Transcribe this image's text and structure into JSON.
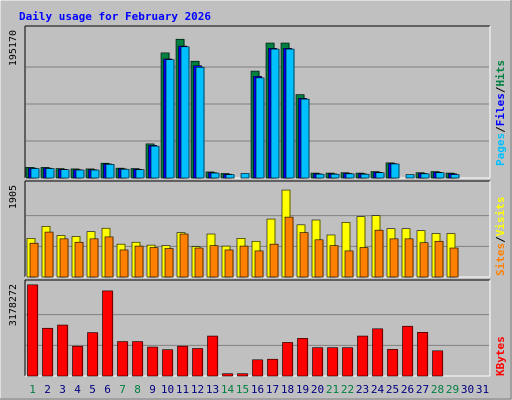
{
  "chart_data": {
    "type": "bar",
    "title": "Daily usage for February 2026",
    "categories": [
      "1",
      "2",
      "3",
      "4",
      "5",
      "6",
      "7",
      "8",
      "9",
      "10",
      "11",
      "12",
      "13",
      "14",
      "15",
      "16",
      "17",
      "18",
      "19",
      "20",
      "21",
      "22",
      "23",
      "24",
      "25",
      "26",
      "27",
      "28",
      "29",
      "30",
      "31"
    ],
    "weekend_days": [
      "1",
      "7",
      "8",
      "14",
      "15",
      "21",
      "22",
      "28",
      "29"
    ],
    "panels": [
      {
        "name": "hits-files-pages",
        "ymax_label": "195170",
        "ymax": 195170,
        "series": [
          {
            "name": "Hits",
            "color": "#008040",
            "values": [
              14000,
              14000,
              12500,
              12000,
              12000,
              19500,
              13000,
              12500,
              45000,
              165000,
              183000,
              154000,
              8000,
              6000,
              0,
              141000,
              178000,
              178000,
              110000,
              6500,
              6500,
              7000,
              6500,
              8500,
              20000,
              0,
              7000,
              8500,
              6500,
              null,
              null
            ]
          },
          {
            "name": "Files",
            "color": "#0000ff",
            "values": [
              13000,
              13000,
              11500,
              11000,
              11000,
              18500,
              12000,
              11500,
              43000,
              157000,
              174000,
              148000,
              7000,
              5000,
              0,
              134000,
              171000,
              171000,
              105000,
              5500,
              5500,
              6000,
              5500,
              7500,
              19000,
              0,
              6000,
              7500,
              5500,
              null,
              null
            ]
          },
          {
            "name": "Pages",
            "color": "#00c0ff",
            "values": [
              12500,
              12500,
              11000,
              10500,
              10500,
              18000,
              11500,
              11000,
              42000,
              156000,
              173000,
              146000,
              6500,
              4500,
              6000,
              132000,
              170000,
              170000,
              104000,
              5000,
              5000,
              5500,
              5000,
              7000,
              18500,
              4500,
              5500,
              7000,
              4500,
              null,
              null
            ]
          }
        ]
      },
      {
        "name": "visits-sites",
        "ymax_label": "1905",
        "ymax": 1905,
        "series": [
          {
            "name": "Visits",
            "color": "#ffff00",
            "values": [
              800,
              1050,
              860,
              840,
              940,
              1010,
              680,
              720,
              660,
              650,
              920,
              630,
              890,
              640,
              800,
              740,
              1200,
              1800,
              1080,
              1180,
              870,
              1130,
              1250,
              1270,
              1000,
              1000,
              960,
              900,
              900,
              null,
              null
            ]
          },
          {
            "name": "Sites",
            "color": "#ff8000",
            "values": [
              700,
              930,
              790,
              720,
              790,
              830,
              560,
              640,
              610,
              590,
              890,
              600,
              650,
              560,
              640,
              540,
              680,
              1240,
              920,
              770,
              650,
              540,
              610,
              970,
              790,
              790,
              710,
              740,
              600,
              null,
              null
            ]
          }
        ]
      },
      {
        "name": "kbytes",
        "ymax_label": "3178272",
        "ymax": 3178272,
        "series": [
          {
            "name": "KBytes",
            "color": "#ff0000",
            "values": [
              3150000,
              1650000,
              1760000,
              1030000,
              1500000,
              2940000,
              1190000,
              1190000,
              1000000,
              910000,
              1030000,
              950000,
              1380000,
              80000,
              80000,
              560000,
              580000,
              1160000,
              1300000,
              980000,
              980000,
              980000,
              1380000,
              1630000,
              920000,
              1720000,
              1510000,
              870000,
              null,
              null,
              null
            ]
          }
        ]
      }
    ],
    "side_labels": {
      "panel1": [
        "Pages",
        "/",
        "Files",
        "/",
        "Hits"
      ],
      "panel2": [
        "Sites",
        "/",
        "Visits"
      ],
      "panel3": [
        "KBytes"
      ]
    },
    "colors": {
      "background": "#c0c0c0",
      "plot_background": "#c0c0c0",
      "title": "#0000ff",
      "weekday_label": "#000080",
      "weekend_label": "#008040"
    }
  }
}
